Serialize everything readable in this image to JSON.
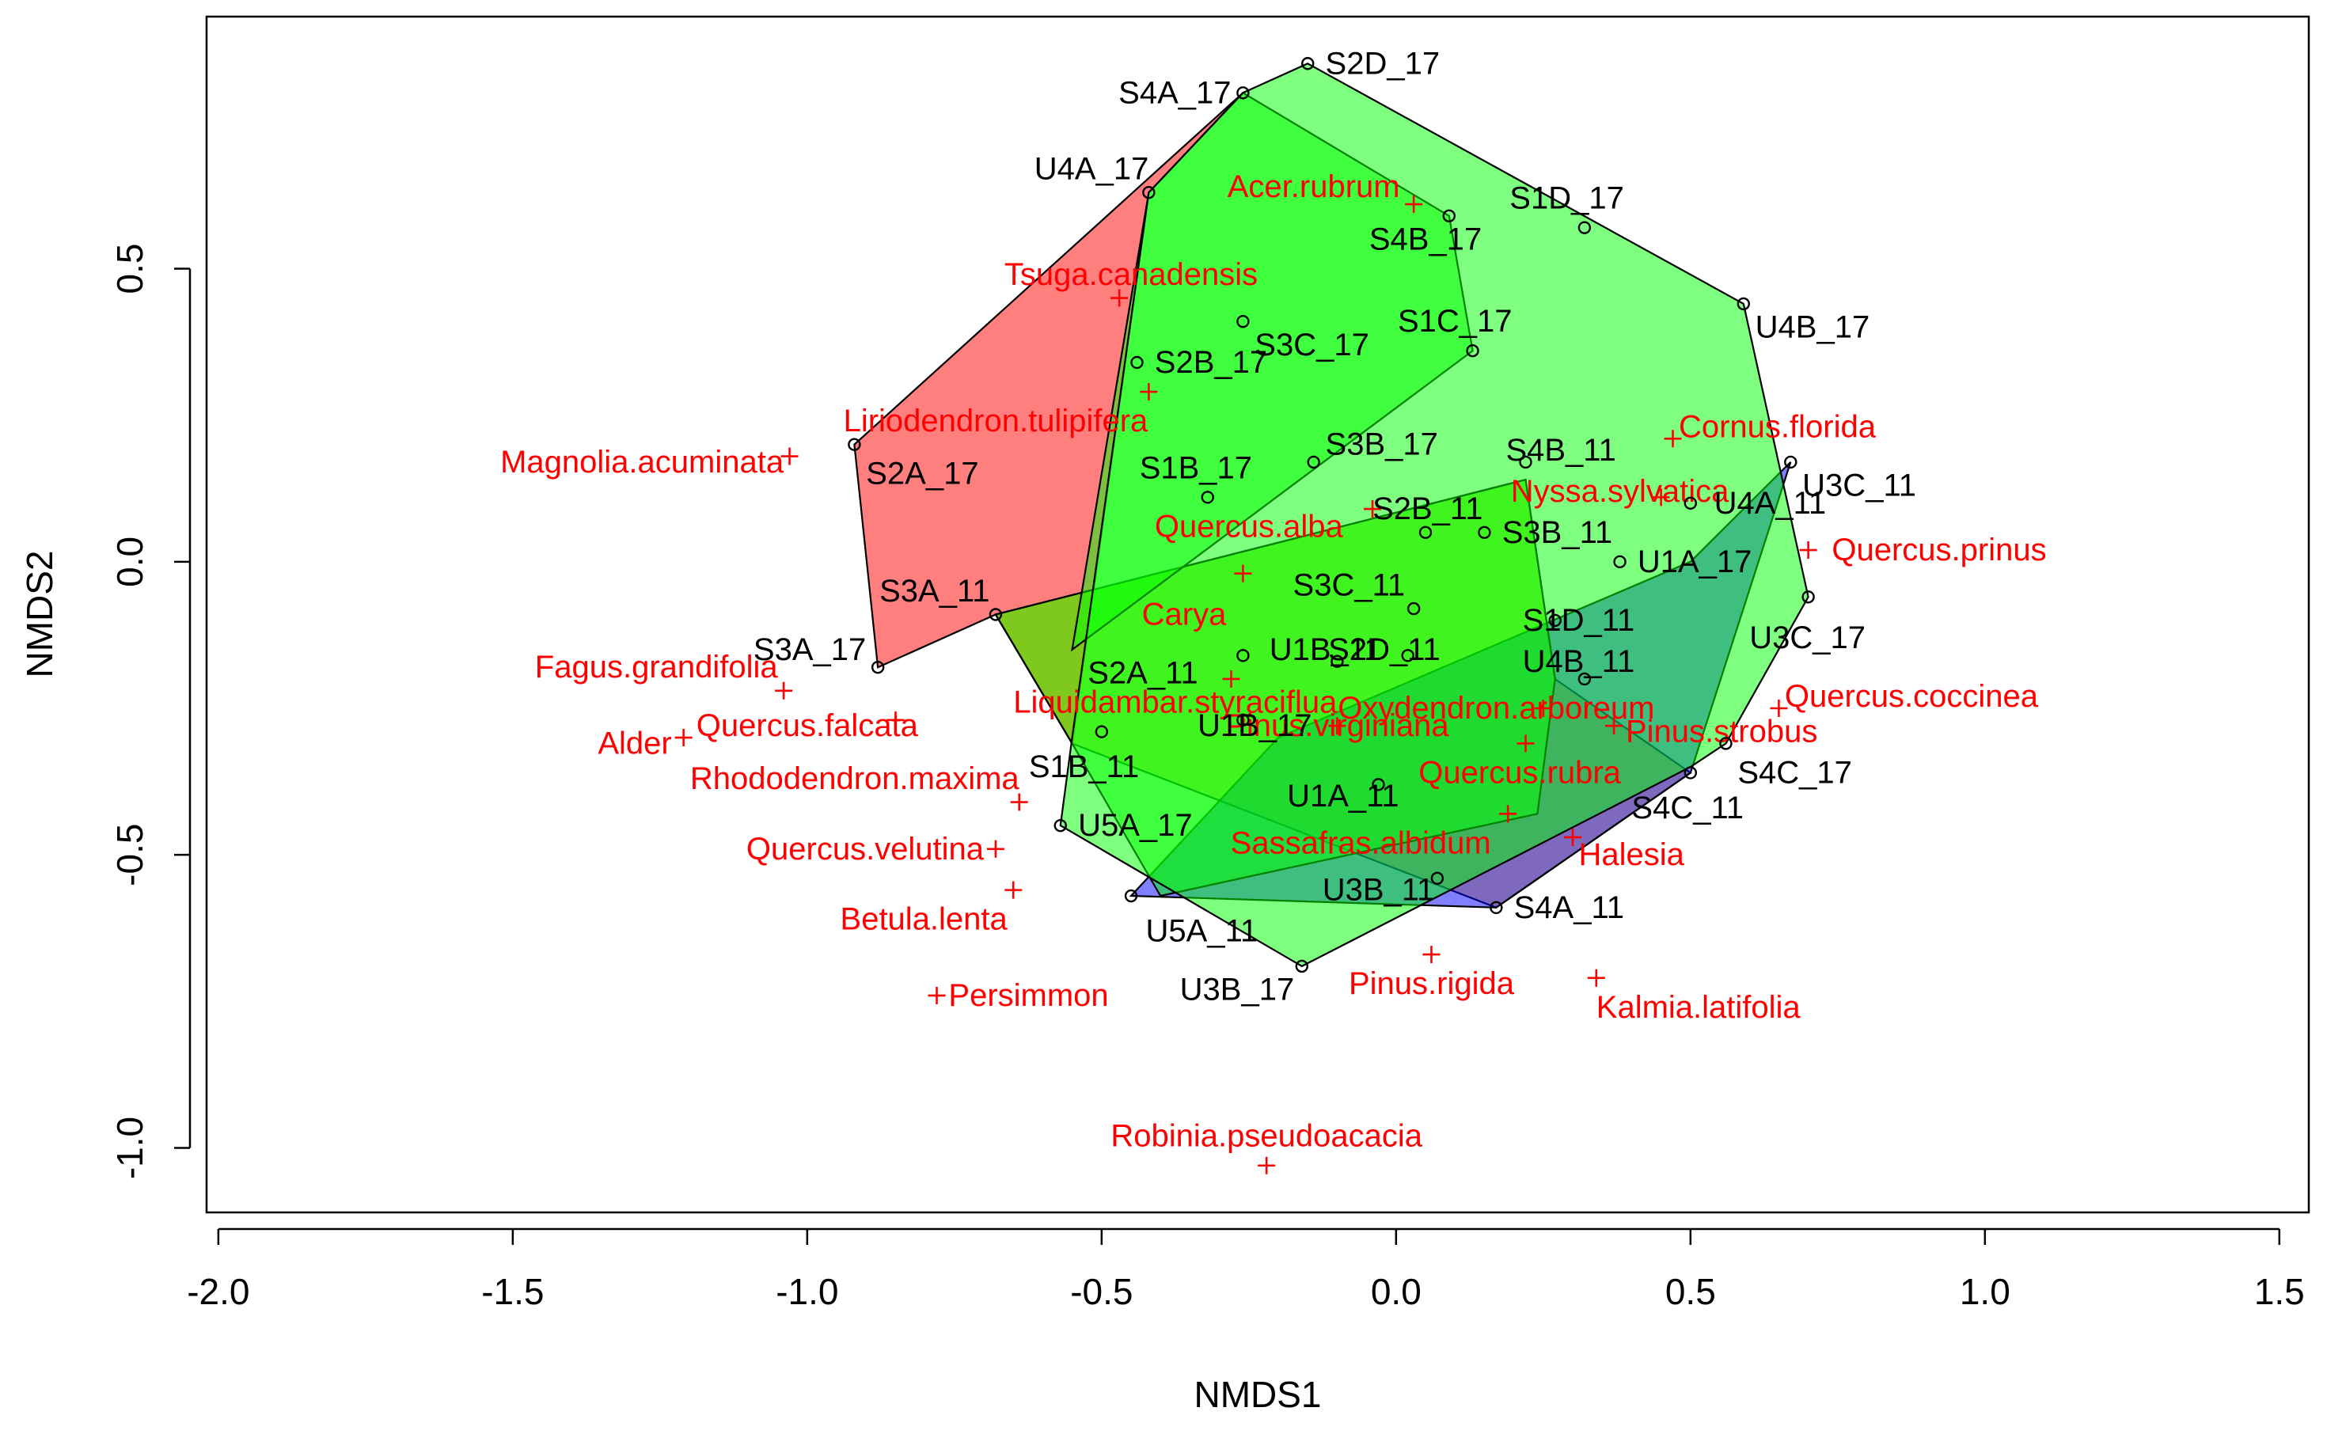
{
  "chart_data": {
    "type": "scatter",
    "title": "",
    "xlabel": "NMDS1",
    "ylabel": "NMDS2",
    "xlim": [
      -2.02,
      1.55
    ],
    "ylim": [
      -1.11,
      0.93
    ],
    "grid": false,
    "legend": "none",
    "x_ticks": [
      {
        "value": -2.0,
        "label": "-2.0"
      },
      {
        "value": -1.5,
        "label": "-1.5"
      },
      {
        "value": -1.0,
        "label": "-1.0"
      },
      {
        "value": -0.5,
        "label": "-0.5"
      },
      {
        "value": 0.0,
        "label": "0.0"
      },
      {
        "value": 0.5,
        "label": "0.5"
      },
      {
        "value": 1.0,
        "label": "1.0"
      },
      {
        "value": 1.5,
        "label": "1.5"
      }
    ],
    "y_ticks": [
      {
        "value": -1.0,
        "label": "-1.0"
      },
      {
        "value": -0.5,
        "label": "-0.5"
      },
      {
        "value": 0.0,
        "label": "0.0"
      },
      {
        "value": 0.5,
        "label": "0.5"
      }
    ],
    "hulls": [
      {
        "name": "red-hull",
        "color": "#ff0000",
        "opacity": 0.5,
        "points": [
          [
            -0.92,
            0.2
          ],
          [
            -0.26,
            0.8
          ],
          [
            -0.42,
            0.63
          ],
          [
            -0.55,
            -0.31
          ],
          [
            -0.68,
            -0.09
          ],
          [
            -0.88,
            -0.18
          ]
        ]
      },
      {
        "name": "orange-hull",
        "color": "#ffa500",
        "opacity": 0.5,
        "points": [
          [
            -0.68,
            -0.09
          ],
          [
            0.22,
            0.14
          ],
          [
            0.27,
            -0.2
          ],
          [
            0.5,
            -0.36
          ],
          [
            0.17,
            -0.59
          ],
          [
            -0.55,
            -0.31
          ]
        ]
      },
      {
        "name": "blue-hull",
        "color": "#0000ff",
        "opacity": 0.5,
        "points": [
          [
            -0.45,
            -0.57
          ],
          [
            0.17,
            -0.59
          ],
          [
            0.5,
            -0.36
          ],
          [
            0.67,
            0.17
          ],
          [
            0.5,
            0.0
          ],
          [
            -0.2,
            -0.3
          ]
        ]
      },
      {
        "name": "green-hull-11",
        "color": "#00ff00",
        "opacity": 0.5,
        "points": [
          [
            -0.55,
            -0.31
          ],
          [
            -0.68,
            -0.09
          ],
          [
            0.22,
            0.14
          ],
          [
            0.27,
            -0.2
          ],
          [
            0.24,
            -0.43
          ],
          [
            -0.4,
            -0.57
          ]
        ]
      },
      {
        "name": "green-hull-2",
        "color": "#00ff00",
        "opacity": 0.5,
        "points": [
          [
            -0.42,
            0.63
          ],
          [
            -0.26,
            0.8
          ],
          [
            0.09,
            0.59
          ],
          [
            0.13,
            0.36
          ],
          [
            -0.55,
            -0.15
          ]
        ]
      },
      {
        "name": "green-hull-big",
        "color": "#00ff00",
        "opacity": 0.5,
        "points": [
          [
            -0.15,
            0.85
          ],
          [
            0.59,
            0.44
          ],
          [
            0.7,
            -0.06
          ],
          [
            0.56,
            -0.31
          ],
          [
            0.5,
            -0.35
          ],
          [
            -0.16,
            -0.69
          ],
          [
            -0.57,
            -0.45
          ],
          [
            -0.55,
            -0.3
          ],
          [
            -0.42,
            0.63
          ],
          [
            -0.26,
            0.8
          ]
        ]
      }
    ],
    "sites": [
      {
        "label": "S2D_17",
        "x": -0.15,
        "y": 0.85,
        "lx": -0.12,
        "ly": 0.85,
        "anchor": "start"
      },
      {
        "label": "S4A_17",
        "x": -0.26,
        "y": 0.8,
        "lx": -0.28,
        "ly": 0.8,
        "anchor": "end"
      },
      {
        "label": "U4A_17",
        "x": -0.42,
        "y": 0.63,
        "lx": -0.42,
        "ly": 0.67,
        "anchor": "end"
      },
      {
        "label": "S4B_17",
        "x": 0.09,
        "y": 0.59,
        "lx": 0.05,
        "ly": 0.55,
        "anchor": "middle"
      },
      {
        "label": "S1D_17",
        "x": 0.32,
        "y": 0.57,
        "lx": 0.29,
        "ly": 0.62,
        "anchor": "middle"
      },
      {
        "label": "U4B_17",
        "x": 0.59,
        "y": 0.44,
        "lx": 0.61,
        "ly": 0.4,
        "anchor": "start"
      },
      {
        "label": "S1C_17",
        "x": 0.13,
        "y": 0.36,
        "lx": 0.1,
        "ly": 0.41,
        "anchor": "middle"
      },
      {
        "label": "S3C_17",
        "x": -0.26,
        "y": 0.41,
        "lx": -0.24,
        "ly": 0.37,
        "anchor": "start"
      },
      {
        "label": "S2B_17",
        "x": -0.44,
        "y": 0.34,
        "lx": -0.41,
        "ly": 0.34,
        "anchor": "start"
      },
      {
        "label": "S2A_17",
        "x": -0.92,
        "y": 0.2,
        "lx": -0.9,
        "ly": 0.15,
        "anchor": "start"
      },
      {
        "label": "S3B_17",
        "x": -0.14,
        "y": 0.17,
        "lx": -0.12,
        "ly": 0.2,
        "anchor": "start"
      },
      {
        "label": "S1B_17",
        "x": -0.32,
        "y": 0.11,
        "lx": -0.34,
        "ly": 0.16,
        "anchor": "middle"
      },
      {
        "label": "S4B_11",
        "x": 0.22,
        "y": 0.17,
        "lx": 0.28,
        "ly": 0.19,
        "anchor": "middle"
      },
      {
        "label": "S2B_11",
        "x": 0.05,
        "y": 0.05,
        "lx": -0.04,
        "ly": 0.09,
        "anchor": "start"
      },
      {
        "label": "S3B_11",
        "x": 0.15,
        "y": 0.05,
        "lx": 0.18,
        "ly": 0.05,
        "anchor": "start"
      },
      {
        "label": "U3C_11",
        "x": 0.67,
        "y": 0.17,
        "lx": 0.69,
        "ly": 0.13,
        "anchor": "start"
      },
      {
        "label": "U4A_11",
        "x": 0.5,
        "y": 0.1,
        "lx": 0.54,
        "ly": 0.1,
        "anchor": "start"
      },
      {
        "label": "U1A_17",
        "x": 0.38,
        "y": 0.0,
        "lx": 0.41,
        "ly": 0.0,
        "anchor": "start"
      },
      {
        "label": "S3A_11",
        "x": -0.68,
        "y": -0.09,
        "lx": -0.69,
        "ly": -0.05,
        "anchor": "end"
      },
      {
        "label": "S3C_11",
        "x": 0.03,
        "y": -0.08,
        "lx": -0.08,
        "ly": -0.04,
        "anchor": "middle"
      },
      {
        "label": "S1D_11",
        "x": 0.27,
        "y": -0.1,
        "lx": 0.31,
        "ly": -0.1,
        "anchor": "middle"
      },
      {
        "label": "U3C_17",
        "x": 0.7,
        "y": -0.06,
        "lx": 0.6,
        "ly": -0.13,
        "anchor": "start"
      },
      {
        "label": "S3A_17",
        "x": -0.88,
        "y": -0.18,
        "lx": -0.9,
        "ly": -0.15,
        "anchor": "end"
      },
      {
        "label": "S2A_11",
        "x": -0.26,
        "y": -0.16,
        "lx": -0.43,
        "ly": -0.19,
        "anchor": "middle"
      },
      {
        "label": "U1B_11",
        "x": -0.1,
        "y": -0.17,
        "lx": -0.12,
        "ly": -0.15,
        "anchor": "middle"
      },
      {
        "label": "S2D_11",
        "x": 0.02,
        "y": -0.16,
        "lx": -0.02,
        "ly": -0.15,
        "anchor": "middle"
      },
      {
        "label": "U4B_11",
        "x": 0.32,
        "y": -0.2,
        "lx": 0.31,
        "ly": -0.17,
        "anchor": "middle"
      },
      {
        "label": "U1B_17",
        "x": -0.26,
        "y": -0.27,
        "lx": -0.24,
        "ly": -0.28,
        "anchor": "middle"
      },
      {
        "label": "S1B_11",
        "x": -0.5,
        "y": -0.29,
        "lx": -0.53,
        "ly": -0.35,
        "anchor": "middle"
      },
      {
        "label": "U1A_11",
        "x": -0.03,
        "y": -0.38,
        "lx": -0.09,
        "ly": -0.4,
        "anchor": "middle"
      },
      {
        "label": "S4C_17",
        "x": 0.56,
        "y": -0.31,
        "lx": 0.58,
        "ly": -0.36,
        "anchor": "start"
      },
      {
        "label": "S4C_11",
        "x": 0.5,
        "y": -0.36,
        "lx": 0.4,
        "ly": -0.42,
        "anchor": "start"
      },
      {
        "label": "U5A_17",
        "x": -0.57,
        "y": -0.45,
        "lx": -0.54,
        "ly": -0.45,
        "anchor": "start"
      },
      {
        "label": "U3B_11",
        "x": 0.07,
        "y": -0.54,
        "lx": -0.03,
        "ly": -0.56,
        "anchor": "middle"
      },
      {
        "label": "U5A_11",
        "x": -0.45,
        "y": -0.57,
        "lx": -0.33,
        "ly": -0.63,
        "anchor": "middle"
      },
      {
        "label": "S4A_11",
        "x": 0.17,
        "y": -0.59,
        "lx": 0.2,
        "ly": -0.59,
        "anchor": "start"
      },
      {
        "label": "U3B_17",
        "x": -0.16,
        "y": -0.69,
        "lx": -0.27,
        "ly": -0.73,
        "anchor": "middle"
      }
    ],
    "species": [
      {
        "label": "Acer.rubrum",
        "x": 0.03,
        "y": 0.61,
        "lx": -0.14,
        "ly": 0.64,
        "anchor": "middle"
      },
      {
        "label": "Tsuga.canadensis",
        "x": -0.47,
        "y": 0.45,
        "lx": -0.45,
        "ly": 0.49,
        "anchor": "middle"
      },
      {
        "label": "Liriodendron.tulipifera",
        "x": -0.42,
        "y": 0.29,
        "lx": -0.68,
        "ly": 0.24,
        "anchor": "middle"
      },
      {
        "label": "Magnolia.acuminata",
        "x": -1.03,
        "y": 0.18,
        "lx": -1.04,
        "ly": 0.17,
        "anchor": "end"
      },
      {
        "label": "Cornus.florida",
        "x": 0.47,
        "y": 0.21,
        "lx": 0.48,
        "ly": 0.23,
        "anchor": "start"
      },
      {
        "label": "Nyssa.sylvatica",
        "x": 0.45,
        "y": 0.11,
        "lx": 0.38,
        "ly": 0.12,
        "anchor": "middle"
      },
      {
        "label": "Quercus.alba",
        "x": -0.04,
        "y": 0.09,
        "lx": -0.25,
        "ly": 0.06,
        "anchor": "middle"
      },
      {
        "label": "Quercus.prinus",
        "x": 0.7,
        "y": 0.02,
        "lx": 0.74,
        "ly": 0.02,
        "anchor": "start"
      },
      {
        "label": "Carya",
        "x": -0.26,
        "y": -0.02,
        "lx": -0.36,
        "ly": -0.09,
        "anchor": "middle"
      },
      {
        "label": "Liquidambar.styraciflua",
        "x": -0.28,
        "y": -0.2,
        "lx": -0.65,
        "ly": -0.24,
        "anchor": "start"
      },
      {
        "label": "Fagus.grandifolia",
        "x": -1.04,
        "y": -0.22,
        "lx": -1.05,
        "ly": -0.18,
        "anchor": "end"
      },
      {
        "label": "Quercus.coccinea",
        "x": 0.65,
        "y": -0.25,
        "lx": 0.66,
        "ly": -0.23,
        "anchor": "start"
      },
      {
        "label": "Oxydendron.arboreum",
        "x": 0.25,
        "y": -0.25,
        "lx": 0.17,
        "ly": -0.25,
        "anchor": "middle"
      },
      {
        "label": "Pinus.virginiana",
        "x": -0.1,
        "y": -0.28,
        "lx": -0.1,
        "ly": -0.28,
        "anchor": "middle"
      },
      {
        "label": "Pinus.strobus",
        "x": 0.37,
        "y": -0.28,
        "lx": 0.39,
        "ly": -0.29,
        "anchor": "start"
      },
      {
        "label": "Quercus.falcata",
        "x": -0.85,
        "y": -0.27,
        "lx": -1.0,
        "ly": -0.28,
        "anchor": "middle"
      },
      {
        "label": "Alder",
        "x": -1.21,
        "y": -0.3,
        "lx": -1.23,
        "ly": -0.31,
        "anchor": "end"
      },
      {
        "label": "Quercus.rubra",
        "x": 0.22,
        "y": -0.31,
        "lx": 0.21,
        "ly": -0.36,
        "anchor": "middle"
      },
      {
        "label": "Rhododendron.maxima",
        "x": -0.64,
        "y": -0.41,
        "lx": -0.64,
        "ly": -0.37,
        "anchor": "end"
      },
      {
        "label": "Sassafras.albidum",
        "x": 0.19,
        "y": -0.43,
        "lx": -0.06,
        "ly": -0.48,
        "anchor": "middle"
      },
      {
        "label": "Quercus.velutina",
        "x": -0.68,
        "y": -0.49,
        "lx": -0.7,
        "ly": -0.49,
        "anchor": "end"
      },
      {
        "label": "Halesia",
        "x": 0.3,
        "y": -0.47,
        "lx": 0.31,
        "ly": -0.5,
        "anchor": "start"
      },
      {
        "label": "Betula.lenta",
        "x": -0.65,
        "y": -0.56,
        "lx": -0.66,
        "ly": -0.61,
        "anchor": "end"
      },
      {
        "label": "Pinus.rigida",
        "x": 0.06,
        "y": -0.67,
        "lx": 0.06,
        "ly": -0.72,
        "anchor": "middle"
      },
      {
        "label": "Kalmia.latifolia",
        "x": 0.34,
        "y": -0.71,
        "lx": 0.34,
        "ly": -0.76,
        "anchor": "start"
      },
      {
        "label": "Persimmon",
        "x": -0.78,
        "y": -0.74,
        "lx": -0.76,
        "ly": -0.74,
        "anchor": "start"
      },
      {
        "label": "Robinia.pseudoacacia",
        "x": -0.22,
        "y": -1.03,
        "lx": -0.22,
        "ly": -0.98,
        "anchor": "middle"
      }
    ]
  }
}
